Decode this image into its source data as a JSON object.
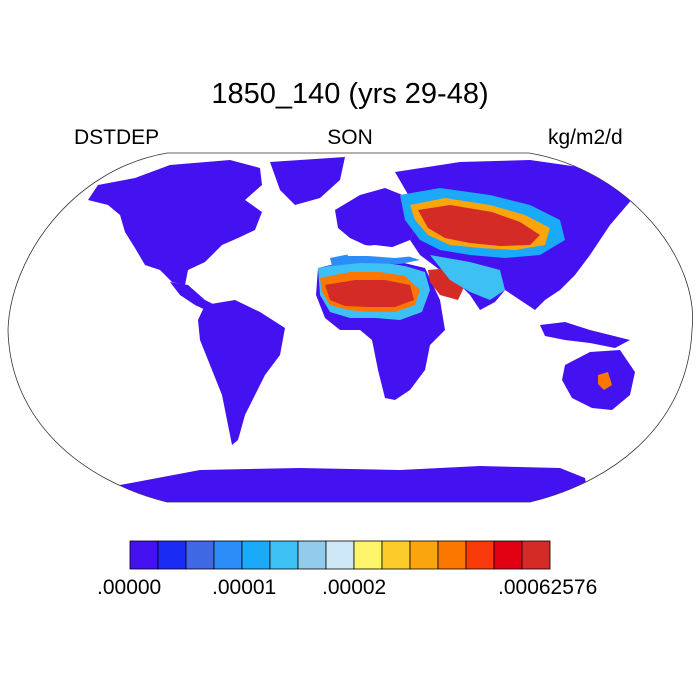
{
  "title": "1850_140 (yrs 29-48)",
  "left_label": "DSTDEP",
  "center_label": "SON",
  "right_label": "kg/m2/d",
  "colorbar": {
    "colors": [
      "#4411f0",
      "#1a2cf4",
      "#3f68e4",
      "#2c8cf8",
      "#1aaaf8",
      "#3dc1f5",
      "#92cbec",
      "#cfe8f8",
      "#fdf46b",
      "#fccd2a",
      "#fba50e",
      "#fb7700",
      "#f93b0b",
      "#e00012",
      "#d42b27"
    ],
    "tick_labels": [
      ".00000",
      ".00001",
      ".00002",
      ".00062576"
    ]
  },
  "land_color": "#4411f0"
}
